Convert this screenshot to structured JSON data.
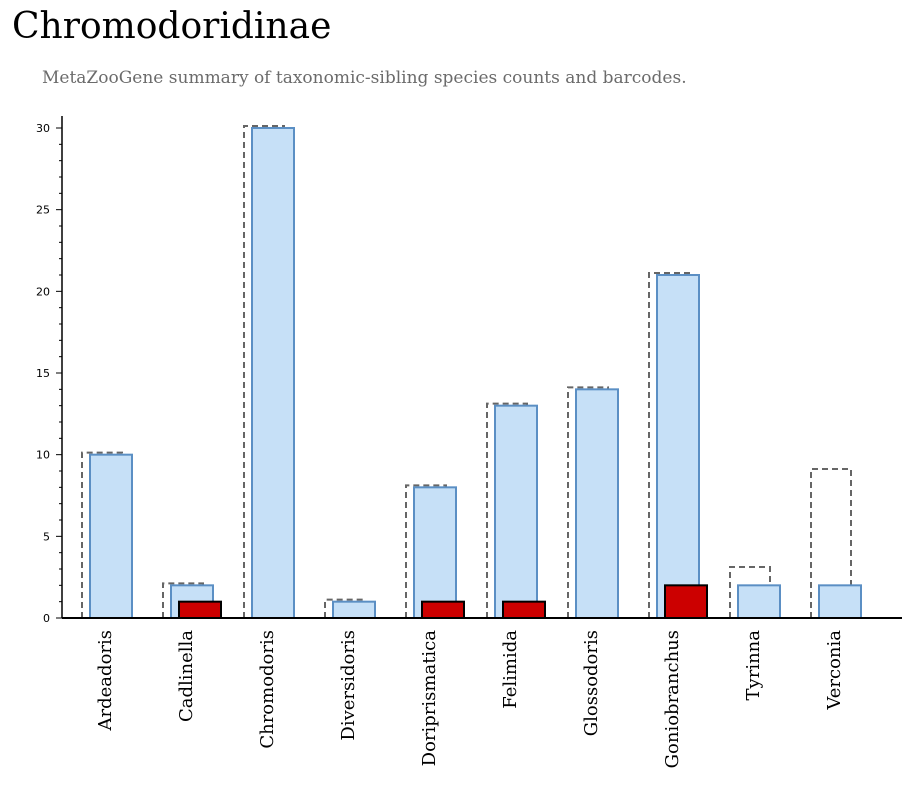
{
  "title": "Chromodoridinae",
  "subtitle": "MetaZooGene summary of taxonomic-sibling species counts and barcodes.",
  "colors": {
    "species_fill": "#c6e0f7",
    "species_stroke": "#5b8fc4",
    "barcode_fill": "#cc0000",
    "barcode_stroke": "#000000",
    "dashed_stroke": "#666666"
  },
  "chart_data": {
    "type": "bar",
    "categories": [
      "Ardeadoris",
      "Cadlinella",
      "Chromodoris",
      "Diversidoris",
      "Doriprismatica",
      "Felimida",
      "Glossodoris",
      "Goniobranchus",
      "Tyrinna",
      "Verconia"
    ],
    "series": [
      {
        "role": "dashed outline",
        "values": [
          10,
          2,
          30,
          1,
          8,
          13,
          14,
          21,
          3,
          9
        ]
      },
      {
        "role": "blue bars",
        "values": [
          10,
          2,
          30,
          1,
          8,
          13,
          14,
          21,
          2,
          2
        ]
      },
      {
        "role": "red bars",
        "values": [
          0,
          1,
          0,
          0,
          1,
          1,
          0,
          2,
          0,
          0
        ]
      }
    ],
    "yticks": [
      0,
      5,
      10,
      15,
      20,
      25,
      30
    ],
    "ylim": [
      0,
      30
    ],
    "grid": false,
    "legend": "none"
  }
}
